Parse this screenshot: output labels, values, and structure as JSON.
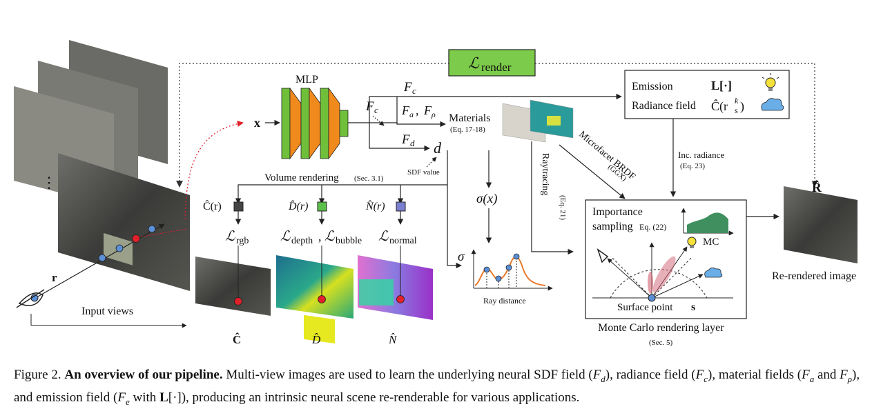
{
  "diagram": {
    "loss_render": "ℒ",
    "loss_render_sub": "render",
    "mlp_label": "MLP",
    "x_label": "x",
    "fc_label": "F",
    "fc_sub": "c",
    "fc_top_label": "F",
    "fc_top_sub": "c",
    "fa_label": "F",
    "fa_sub": "a",
    "frho_label": "F",
    "frho_sub": "ρ",
    "fd_label": "F",
    "fd_sub": "d",
    "d_label": "d",
    "sdf_value": "SDF value",
    "materials": "Materials",
    "materials_eq": "(Eq. 17-18)",
    "emission": "Emission",
    "emission_math": "L[·]",
    "radiance_field": "Radiance field",
    "radiance_math": "Ĉ(r",
    "radiance_math_sub": "s",
    "radiance_math_sup": "k",
    "radiance_math_close": ")",
    "microfacet": "Microfacet BRDF",
    "ggx": "(GGX)",
    "raytracing": "Raytracing",
    "raytracing_eq": "(Eq. 21)",
    "inc_radiance": "Inc. radiance",
    "inc_radiance_eq": "(Eq. 23)",
    "volume_rendering": "Volume rendering",
    "volume_rendering_sec": "(Sec. 3.1)",
    "c_r": "Ĉ(r)",
    "d_r": "D̂(r)",
    "n_r": "N̂(r)",
    "l_rgb": "ℒ",
    "l_rgb_sub": "rgb",
    "l_depth": "ℒ",
    "l_depth_sub": "depth",
    "l_bubble": "ℒ",
    "l_bubble_sub": "bubble",
    "l_normal": "ℒ",
    "l_normal_sub": "normal",
    "sigma_x": "σ(x)",
    "sigma": "σ",
    "ray_distance": "Ray distance",
    "importance_sampling": "Importance",
    "importance_sampling2": "sampling",
    "importance_eq": "Eq. (22)",
    "mc": "MC",
    "surface_point": "Surface point",
    "surface_point_math": "s",
    "mc_layer": "Monte Carlo rendering layer",
    "mc_layer_sec": "(Sec. 5)",
    "r_hat": "R̂",
    "rerendered": "Re-rendered image",
    "r_label": "r",
    "input_views": "Input views",
    "c_hat": "Ĉ",
    "d_hat": "D̂",
    "n_hat": "N̂",
    "dots": "⋮"
  },
  "caption": {
    "prefix": "Figure 2.",
    "bold": "An overview of our pipeline.",
    "t1": " Multi-view images are used to learn the underlying neural SDF field (",
    "m1": "F",
    "m1s": "d",
    "t2": "), radiance field (",
    "m2": "F",
    "m2s": "c",
    "t3": "), material fields (",
    "m3": "F",
    "m3s": "a",
    "t4": " and ",
    "m4": "F",
    "m4s": "ρ",
    "t5": "), and emission field (",
    "m5": "F",
    "m5s": "e",
    "t6": " with ",
    "m6": "L",
    "t7": "[·]), producing an intrinsic neural scene re-renderable for various applications."
  },
  "colors": {
    "mlp_green": "#6fbf3a",
    "mlp_orange": "#f08a1c",
    "loss_box": "#7ccb4a",
    "c_square": "#444444",
    "d_square": "#5bbf4a",
    "n_square": "#7a7fcf",
    "sample_point_red": "#e0202a",
    "sample_point_blue": "#5b8fd6",
    "curve_orange": "#e8792a",
    "mc_fill": "#3f8f5f"
  }
}
